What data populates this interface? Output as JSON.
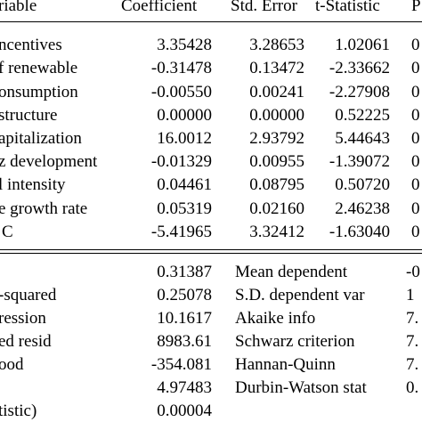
{
  "header": {
    "variable": "riable",
    "coefficient": "Coefficient",
    "std_error": "Std. Error",
    "t_statistic": "t-Statistic",
    "prob": "P"
  },
  "coefficients": [
    {
      "label": "ncentives",
      "coef": "3.35428",
      "se": "3.28653",
      "t": "1.02061",
      "p": "0"
    },
    {
      "label": "f renewable",
      "coef": "-0.31478",
      "se": "0.13472",
      "t": "-2.33662",
      "p": "0"
    },
    {
      "label": "onsumption",
      "coef": "-0.00550",
      "se": "0.00241",
      "t": "-2.27908",
      "p": "0"
    },
    {
      "label": "structure",
      "coef": "0.00000",
      "se": "0.00000",
      "t": "0.52225",
      "p": "0"
    },
    {
      "label": "apitalization",
      "coef": "16.0012",
      "se": "2.93792",
      "t": "5.44643",
      "p": "0"
    },
    {
      "label": "z development",
      "coef": "-0.01329",
      "se": "0.00955",
      "t": "-1.39072",
      "p": "0"
    },
    {
      "label": "l intensity",
      "coef": "0.04461",
      "se": "0.08795",
      "t": "0.50720",
      "p": "0"
    },
    {
      "label": "e growth rate",
      "coef": "0.05319",
      "se": "0.02160",
      "t": "2.46238",
      "p": "0"
    },
    {
      "label": "C",
      "coef": "-5.41965",
      "se": "3.32412",
      "t": "-1.63040",
      "p": "0"
    }
  ],
  "stats": [
    {
      "label": "",
      "value": "0.31387",
      "right_label": "Mean dependent",
      "right_value": "-0"
    },
    {
      "label": "-squared",
      "value": "0.25078",
      "right_label": "S.D. dependent var",
      "right_value": "1"
    },
    {
      "label": "ression",
      "value": "10.1617",
      "right_label": "Akaike info",
      "right_value": "7."
    },
    {
      "label": "ed resid",
      "value": "8983.61",
      "right_label": "Schwarz criterion",
      "right_value": "7."
    },
    {
      "label": "ood",
      "value": "-354.081",
      "right_label": "Hannan-Quinn",
      "right_value": "7."
    },
    {
      "label": "",
      "value": "4.97483",
      "right_label": "Durbin-Watson stat",
      "right_value": "0."
    },
    {
      "label": "tistic)",
      "value": "0.00004",
      "right_label": "",
      "right_value": ""
    }
  ]
}
